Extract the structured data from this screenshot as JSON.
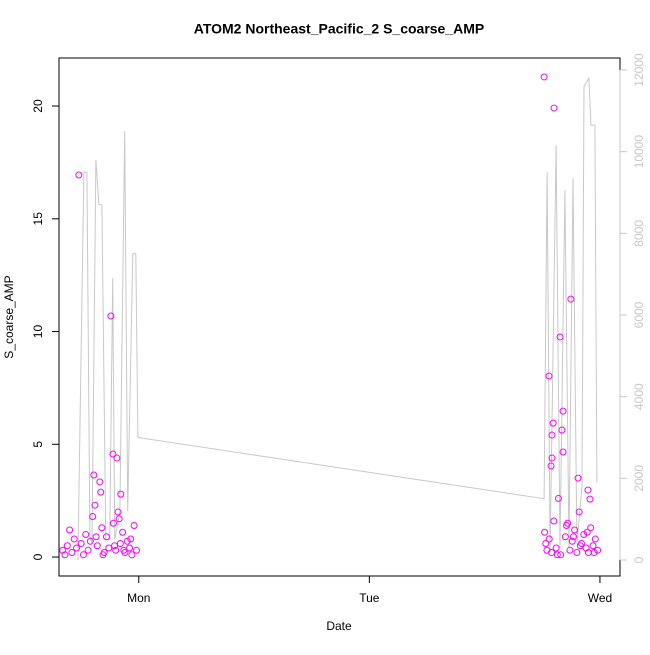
{
  "chart_data": {
    "type": "scatter",
    "title": "ATOM2 Northeast_Pacific_2 S_coarse_AMP",
    "x_label": "Date",
    "y_label": "S_coarse_AMP",
    "xlim": [
      0.654,
      3.087
    ],
    "xticks": [
      {
        "value": 1,
        "label": "Mon"
      },
      {
        "value": 2,
        "label": "Tue"
      },
      {
        "value": 3,
        "label": "Wed"
      }
    ],
    "ylim": [
      -0.84,
      22.13
    ],
    "yticks": [
      0,
      5,
      10,
      15,
      20
    ],
    "y2lim": [
      -392,
      12294
    ],
    "y2ticks": [
      0,
      2000,
      4000,
      6000,
      8000,
      10000,
      12000
    ],
    "series": [
      {
        "name": "S_coarse_AMP",
        "type": "scatter",
        "color": "#ff00ff",
        "x": [
          0.74,
          0.805,
          0.879,
          0.888,
          0.905,
          0.922,
          0.831,
          0.835,
          0.81,
          0.67,
          0.68,
          0.69,
          0.7,
          0.71,
          0.72,
          0.73,
          0.75,
          0.76,
          0.77,
          0.78,
          0.79,
          0.8,
          0.82,
          0.84,
          0.85,
          0.86,
          0.87,
          0.89,
          0.9,
          0.91,
          0.92,
          0.93,
          0.94,
          0.95,
          0.96,
          0.97,
          0.98,
          0.99,
          0.815,
          0.845,
          0.895,
          0.915,
          0.935,
          0.965,
          2.758,
          2.801,
          2.827,
          2.779,
          2.797,
          2.792,
          2.835,
          2.84,
          2.874,
          2.84,
          2.905,
          2.948,
          2.957,
          2.792,
          2.788,
          2.76,
          2.77,
          2.78,
          2.79,
          2.8,
          2.81,
          2.82,
          2.83,
          2.85,
          2.86,
          2.87,
          2.88,
          2.89,
          2.9,
          2.91,
          2.92,
          2.93,
          2.94,
          2.95,
          2.96,
          2.97,
          2.98,
          2.99,
          2.765,
          2.815,
          2.855,
          2.885,
          2.915,
          2.945,
          2.975
        ],
        "values": [
          16.94,
          3.64,
          10.69,
          4.57,
          4.39,
          2.79,
          3.33,
          2.88,
          2.3,
          0.3,
          0.1,
          0.5,
          1.2,
          0.2,
          0.8,
          0.4,
          0.6,
          0.1,
          1.0,
          0.3,
          0.7,
          1.8,
          0.5,
          1.3,
          0.2,
          0.9,
          0.4,
          1.5,
          0.3,
          2.0,
          0.6,
          1.1,
          0.2,
          0.7,
          0.4,
          0.1,
          1.4,
          0.3,
          0.9,
          0.1,
          0.5,
          1.7,
          0.3,
          0.8,
          21.29,
          19.91,
          9.76,
          8.03,
          5.94,
          5.41,
          5.63,
          4.66,
          11.44,
          6.47,
          3.5,
          2.97,
          2.57,
          4.39,
          4.04,
          1.1,
          0.3,
          0.8,
          0.2,
          1.6,
          0.4,
          2.6,
          0.1,
          0.9,
          1.5,
          0.3,
          0.7,
          1.2,
          0.2,
          2.0,
          0.6,
          1.0,
          0.4,
          0.2,
          1.3,
          0.5,
          0.8,
          0.3,
          0.6,
          0.1,
          1.4,
          0.9,
          0.5,
          1.1,
          0.2
        ]
      },
      {
        "type": "line",
        "axis": "y2",
        "color": "#c8c8c8",
        "x": [
          0.736,
          0.762,
          0.775,
          0.788,
          0.797,
          0.814,
          0.827,
          0.84,
          0.857,
          0.874,
          0.887,
          0.896,
          0.918,
          0.939,
          0.952,
          0.974,
          0.987,
          0.996,
          2.758,
          2.771,
          2.784,
          2.81,
          2.827,
          2.848,
          2.866,
          2.883,
          2.9,
          2.922,
          2.931,
          2.952,
          2.961,
          2.978,
          2.987
        ],
        "values": [
          0,
          9500,
          9500,
          600,
          400,
          9800,
          8700,
          8700,
          500,
          500,
          6900,
          500,
          1200,
          10500,
          1200,
          7500,
          7500,
          3000,
          1500,
          9500,
          200,
          10150,
          300,
          9050,
          300,
          9350,
          400,
          1800,
          11600,
          11800,
          10650,
          10650,
          1900
        ]
      }
    ]
  }
}
